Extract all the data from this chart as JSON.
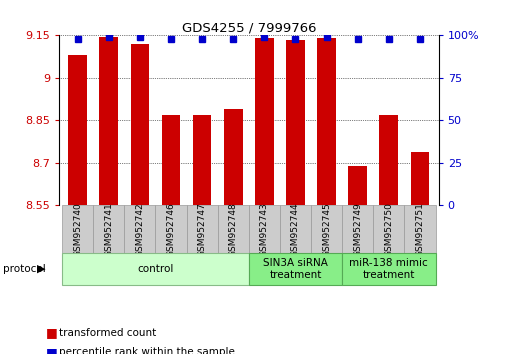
{
  "title": "GDS4255 / 7999766",
  "categories": [
    "GSM952740",
    "GSM952741",
    "GSM952742",
    "GSM952746",
    "GSM952747",
    "GSM952748",
    "GSM952743",
    "GSM952744",
    "GSM952745",
    "GSM952749",
    "GSM952750",
    "GSM952751"
  ],
  "bar_values": [
    9.08,
    9.145,
    9.12,
    8.87,
    8.87,
    8.89,
    9.14,
    9.135,
    9.14,
    8.69,
    8.87,
    8.74
  ],
  "percentile_values": [
    98,
    99,
    99,
    98,
    98,
    98,
    99,
    98,
    99,
    98,
    98,
    98
  ],
  "bar_color": "#cc0000",
  "dot_color": "#0000cc",
  "ylim_left": [
    8.55,
    9.15
  ],
  "ylim_right": [
    0,
    100
  ],
  "yticks_left": [
    8.55,
    8.7,
    8.85,
    9.0,
    9.15
  ],
  "yticks_right": [
    0,
    25,
    50,
    75,
    100
  ],
  "ytick_labels_left": [
    "8.55",
    "8.7",
    "8.85",
    "9",
    "9.15"
  ],
  "ytick_labels_right": [
    "0",
    "25",
    "50",
    "75",
    "100%"
  ],
  "groups": [
    {
      "label": "control",
      "start": 0,
      "end": 6,
      "color": "#ccffcc",
      "edge": "#88bb88"
    },
    {
      "label": "SIN3A siRNA\ntreatment",
      "start": 6,
      "end": 9,
      "color": "#88ee88",
      "edge": "#55aa55"
    },
    {
      "label": "miR-138 mimic\ntreatment",
      "start": 9,
      "end": 12,
      "color": "#88ee88",
      "edge": "#55aa55"
    }
  ],
  "protocol_label": "protocol",
  "legend_items": [
    {
      "label": "transformed count",
      "color": "#cc0000"
    },
    {
      "label": "percentile rank within the sample",
      "color": "#0000cc"
    }
  ],
  "background_color": "#ffffff",
  "title_color": "#000000",
  "left_tick_color": "#cc0000",
  "right_tick_color": "#0000cc",
  "bar_width": 0.6,
  "label_fontsize": 6.5,
  "group_fontsize": 7.5
}
